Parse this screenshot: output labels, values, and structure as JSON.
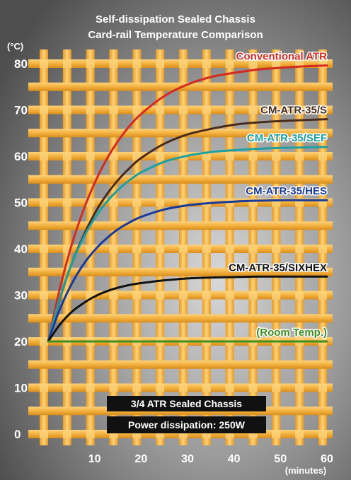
{
  "chart_data": {
    "type": "line",
    "title": "Self-dissipation Sealed Chassis",
    "subtitle": "Card-rail Temperature Comparison",
    "ylabel": "(°C)",
    "xlabel": "(minutes)",
    "xlim": [
      0,
      60
    ],
    "ylim": [
      0,
      80
    ],
    "x_ticks": [
      10,
      20,
      30,
      40,
      50,
      60
    ],
    "y_ticks": [
      0,
      10,
      20,
      30,
      40,
      50,
      60,
      70,
      80
    ],
    "grid": true,
    "x": [
      0,
      2.5,
      5,
      7.5,
      10,
      12.5,
      15,
      17.5,
      20,
      25,
      30,
      35,
      40,
      45,
      50,
      55,
      60
    ],
    "series": [
      {
        "name": "Conventional ATR",
        "color": "#d42a20",
        "values": [
          20,
          31.3,
          40.6,
          48.1,
          54.2,
          59.2,
          63.2,
          66.5,
          69.1,
          73.0,
          75.5,
          77.1,
          78.0,
          78.7,
          79.1,
          79.4,
          79.6
        ]
      },
      {
        "name": "CM-ATR-35/S",
        "color": "#4a2b1a",
        "values": [
          20,
          29.1,
          36.6,
          42.6,
          47.6,
          51.6,
          54.8,
          57.4,
          59.6,
          62.7,
          64.7,
          65.9,
          66.8,
          67.3,
          67.6,
          67.8,
          68.0
        ]
      },
      {
        "name": "CM-ATR-35/SEF",
        "color": "#1fa0a0",
        "values": [
          20,
          29.3,
          36.6,
          42.2,
          46.6,
          50.0,
          52.7,
          54.8,
          56.5,
          58.8,
          60.1,
          60.9,
          61.3,
          61.6,
          61.8,
          61.9,
          62.0
        ]
      },
      {
        "name": "CM-ATR-35/HES",
        "color": "#1a3a9a",
        "values": [
          20,
          26.9,
          32.3,
          36.5,
          39.7,
          42.2,
          44.2,
          45.7,
          46.9,
          48.5,
          49.4,
          49.9,
          50.2,
          50.4,
          50.5,
          50.5,
          50.5
        ]
      },
      {
        "name": "CM-ATR-35/SIXHEX",
        "color": "#111111",
        "values": [
          20,
          23.6,
          26.3,
          28.2,
          29.7,
          30.8,
          31.6,
          32.2,
          32.6,
          33.2,
          33.6,
          33.8,
          33.9,
          34.0,
          34.0,
          34.0,
          34.0
        ]
      },
      {
        "name": "(Room Temp.)",
        "color": "#3f8f1f",
        "values": [
          20,
          20,
          20,
          20,
          20,
          20,
          20,
          20,
          20,
          20,
          20,
          20,
          20,
          20,
          20,
          20,
          20
        ]
      }
    ],
    "annotations": [
      "3/4 ATR Sealed Chassis",
      "Power dissipation: 250W"
    ]
  },
  "colors": {
    "background_dark": "#5a5a5a",
    "background_light": "#c8c8c8",
    "grid_bar": "#f6b23a",
    "grid_bar_light": "#fbd27e",
    "axis_text": "#ffffff",
    "box_fill": "#111111"
  }
}
